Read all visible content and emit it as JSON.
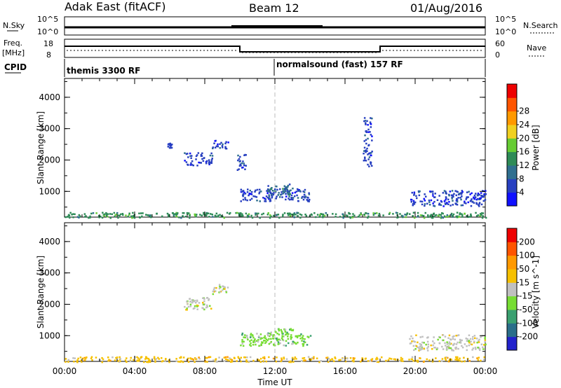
{
  "header": {
    "title": "Adak East (fitACF)",
    "beam": "Beam 12",
    "date": "01/Aug/2016"
  },
  "top_panels": {
    "nsky_label": "N.Sky",
    "nsky_ticks": [
      "10^5",
      "10^0"
    ],
    "nsearch_label": "N.Search",
    "nsearch_ticks": [
      "10^5",
      "10^0"
    ],
    "freq_label": "Freq.",
    "freq_unit": "[MHz]",
    "freq_ticks": [
      "18",
      "8"
    ],
    "nave_label": "Nave",
    "nave_ticks": [
      "60",
      "0"
    ],
    "cpid_label": "CPID",
    "cpid_segments": [
      {
        "label": "themis 3300 RF",
        "start_hour": 0,
        "end_hour": 12
      },
      {
        "label": "normalsound (fast) 157 RF",
        "start_hour": 12,
        "end_hour": 24
      }
    ]
  },
  "chart_data": [
    {
      "type": "heatmap",
      "panel": "power",
      "ylabel": "Slant Range [km]",
      "xlabel": "",
      "ylim": [
        180,
        4600
      ],
      "yticks": [
        "1000",
        "2000",
        "3000",
        "4000"
      ],
      "colorbar_label": "Power [dB]",
      "colorbar_ticks": [
        "4",
        "8",
        "12",
        "16",
        "20",
        "24",
        "28"
      ],
      "colorbar_colors": [
        "#1010ff",
        "#2840c0",
        "#2f6f8f",
        "#2e8b57",
        "#66cc33",
        "#f0d020",
        "#ff9900",
        "#ff5500",
        "#ee0000"
      ],
      "patches": [
        {
          "t0": 5.8,
          "t1": 6.1,
          "r0": 2400,
          "r1": 2600,
          "level": 1
        },
        {
          "t0": 6.8,
          "t1": 8.4,
          "r0": 1850,
          "r1": 2250,
          "level": 1
        },
        {
          "t0": 8.4,
          "t1": 9.3,
          "r0": 2350,
          "r1": 2650,
          "level": 1
        },
        {
          "t0": 9.8,
          "t1": 10.4,
          "r0": 1700,
          "r1": 2200,
          "level": 1
        },
        {
          "t0": 10.0,
          "t1": 14.0,
          "r0": 700,
          "r1": 1100,
          "level": 1
        },
        {
          "t0": 11.5,
          "t1": 13.0,
          "r0": 900,
          "r1": 1250,
          "level": 2
        },
        {
          "t0": 17.0,
          "t1": 17.5,
          "r0": 1800,
          "r1": 3400,
          "level": 1
        },
        {
          "t0": 19.6,
          "t1": 24.0,
          "r0": 550,
          "r1": 1050,
          "level": 1
        },
        {
          "t0": 0.0,
          "t1": 24.0,
          "r0": 180,
          "r1": 350,
          "level": 3
        }
      ]
    },
    {
      "type": "heatmap",
      "panel": "velocity",
      "ylabel": "Slant Range [km]",
      "xlabel": "Time UT",
      "ylim": [
        180,
        4600
      ],
      "yticks": [
        "1000",
        "2000",
        "3000",
        "4000"
      ],
      "xticks": [
        "00:00",
        "04:00",
        "08:00",
        "12:00",
        "16:00",
        "20:00",
        "00:00"
      ],
      "colorbar_label": "Velocity [m s^-1]",
      "colorbar_ticks": [
        "200",
        "100",
        "50",
        "15",
        "-15",
        "-50",
        "-100",
        "-200"
      ],
      "colorbar_colors": [
        "#2222cc",
        "#2a6e8a",
        "#3aa070",
        "#77dd33",
        "#c0c0c0",
        "#f6c000",
        "#ff9900",
        "#ff5500",
        "#ee0000"
      ],
      "patches": [
        {
          "t0": 6.8,
          "t1": 8.4,
          "r0": 1850,
          "r1": 2250,
          "level": 4
        },
        {
          "t0": 8.4,
          "t1": 9.3,
          "r0": 2350,
          "r1": 2650,
          "level": 4
        },
        {
          "t0": 10.0,
          "t1": 14.0,
          "r0": 700,
          "r1": 1100,
          "level": 3
        },
        {
          "t0": 11.5,
          "t1": 13.0,
          "r0": 900,
          "r1": 1250,
          "level": 3
        },
        {
          "t0": 19.6,
          "t1": 24.0,
          "r0": 550,
          "r1": 1050,
          "level": 4
        },
        {
          "t0": 0.0,
          "t1": 24.0,
          "r0": 180,
          "r1": 350,
          "level": 5
        }
      ]
    }
  ]
}
